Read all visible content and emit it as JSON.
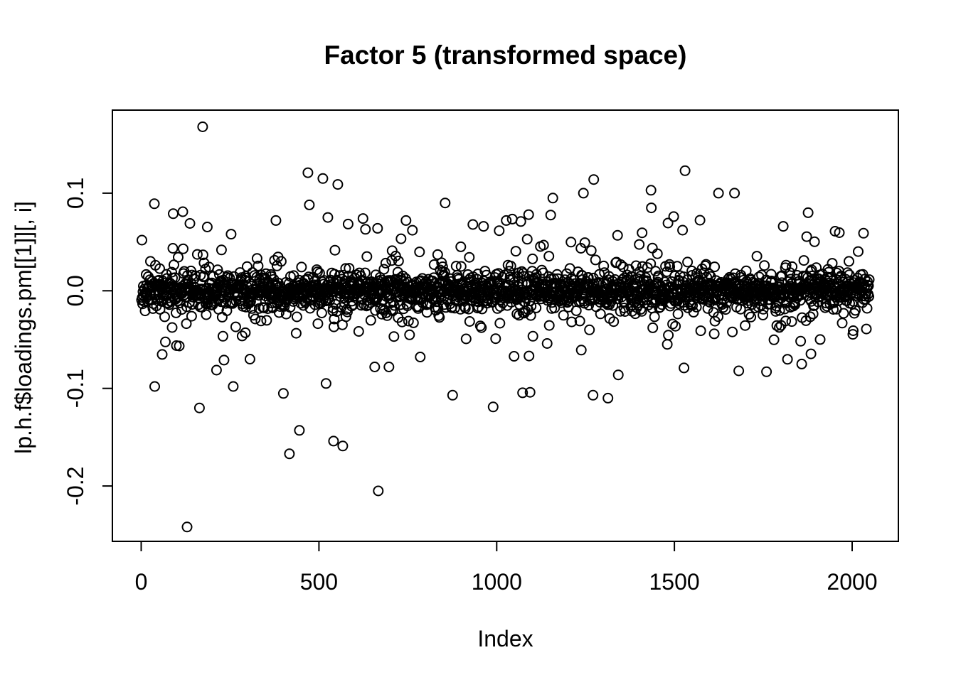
{
  "colors": {
    "background": "#ffffff",
    "foreground": "#000000"
  },
  "chart_data": {
    "type": "scatter",
    "title": "Factor 5 (transformed space)",
    "xlabel": "Index",
    "ylabel": "lp.h.f$loadings.pm[[1]][, i]",
    "n_points": 2048,
    "x_values": "sequential index 1..2048",
    "xlim": [
      -81,
      2130
    ],
    "ylim": [
      -0.2567,
      0.1851
    ],
    "x_ticks": [
      {
        "value": 0,
        "label": "0"
      },
      {
        "value": 500,
        "label": "500"
      },
      {
        "value": 1000,
        "label": "1000"
      },
      {
        "value": 1500,
        "label": "1500"
      },
      {
        "value": 2000,
        "label": "2000"
      }
    ],
    "y_ticks": [
      {
        "value": 0.1,
        "label": "0.1"
      },
      {
        "value": 0.0,
        "label": "0.0"
      },
      {
        "value": -0.1,
        "label": "-0.1"
      },
      {
        "value": -0.2,
        "label": "-0.2"
      }
    ],
    "grid": false,
    "legend": null,
    "marker": {
      "shape": "open-circle",
      "color": "#000000",
      "radius_px": 6.5,
      "stroke_px": 2
    },
    "y_distribution": {
      "description": "dense symmetric band centered at 0 with heavy tails",
      "seed": 20240518,
      "components": [
        {
          "weight": 0.7,
          "sd": 0.0085
        },
        {
          "weight": 0.18,
          "sd": 0.017
        },
        {
          "weight": 0.08,
          "sd": 0.032
        },
        {
          "weight": 0.04,
          "sd": 0.052
        }
      ],
      "clamp": 0.115
    },
    "notable_points": [
      [
        173,
        0.168
      ],
      [
        469,
        0.121
      ],
      [
        553,
        0.109
      ],
      [
        473,
        0.088
      ],
      [
        117,
        0.081
      ],
      [
        90,
        0.079
      ],
      [
        379,
        0.072
      ],
      [
        253,
        0.058
      ],
      [
        631,
        0.063
      ],
      [
        665,
        0.064
      ],
      [
        763,
        0.062
      ],
      [
        1530,
        0.123
      ],
      [
        1273,
        0.114
      ],
      [
        1434,
        0.103
      ],
      [
        1244,
        0.1
      ],
      [
        1158,
        0.095
      ],
      [
        1624,
        0.1
      ],
      [
        1669,
        0.1
      ],
      [
        1876,
        0.08
      ],
      [
        1806,
        0.066
      ],
      [
        1952,
        0.061
      ],
      [
        2032,
        0.059
      ],
      [
        1498,
        0.076
      ],
      [
        1090,
        0.078
      ],
      [
        1068,
        0.071
      ],
      [
        129,
        -0.242
      ],
      [
        667,
        -0.205
      ],
      [
        417,
        -0.167
      ],
      [
        445,
        -0.143
      ],
      [
        541,
        -0.154
      ],
      [
        567,
        -0.159
      ],
      [
        164,
        -0.12
      ],
      [
        38,
        -0.098
      ],
      [
        259,
        -0.098
      ],
      [
        876,
        -0.107
      ],
      [
        990,
        -0.119
      ],
      [
        1094,
        -0.104
      ],
      [
        1271,
        -0.107
      ],
      [
        1313,
        -0.11
      ],
      [
        1527,
        -0.079
      ],
      [
        1681,
        -0.082
      ],
      [
        1759,
        -0.083
      ],
      [
        1858,
        -0.075
      ],
      [
        233,
        -0.071
      ],
      [
        306,
        -0.07
      ],
      [
        657,
        -0.078
      ],
      [
        697,
        -0.078
      ]
    ]
  }
}
